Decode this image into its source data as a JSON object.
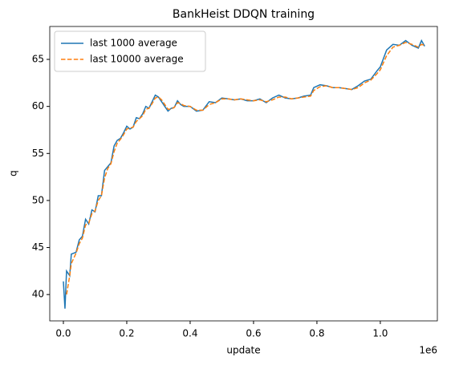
{
  "chart_data": {
    "type": "line",
    "title": "BankHeist DDQN training",
    "x_label": "update",
    "y_label": "q",
    "x_offset_label": "1e6",
    "x": [
      0,
      5000,
      10000,
      20000,
      25000,
      40000,
      50000,
      60000,
      70000,
      80000,
      90000,
      100000,
      110000,
      120000,
      130000,
      140000,
      150000,
      160000,
      170000,
      180000,
      190000,
      200000,
      210000,
      220000,
      230000,
      240000,
      250000,
      260000,
      270000,
      280000,
      290000,
      300000,
      310000,
      320000,
      330000,
      340000,
      350000,
      360000,
      370000,
      380000,
      400000,
      420000,
      440000,
      460000,
      480000,
      500000,
      520000,
      540000,
      560000,
      580000,
      600000,
      620000,
      640000,
      660000,
      680000,
      700000,
      720000,
      740000,
      760000,
      780000,
      790000,
      810000,
      830000,
      850000,
      870000,
      890000,
      910000,
      930000,
      950000,
      970000,
      990000,
      1000000,
      1020000,
      1040000,
      1060000,
      1080000,
      1100000,
      1120000,
      1130000,
      1140000
    ],
    "series": [
      {
        "name": "last 1000 average",
        "color": "#1f77b4",
        "linestyle": "solid",
        "values": [
          41.4,
          38.5,
          42.5,
          42.0,
          44.3,
          44.5,
          45.8,
          46.2,
          48.0,
          47.5,
          49.0,
          48.8,
          50.5,
          50.5,
          53.2,
          53.6,
          54.0,
          55.8,
          56.4,
          56.6,
          57.2,
          57.9,
          57.6,
          57.8,
          58.8,
          58.7,
          59.2,
          60.0,
          59.8,
          60.5,
          61.2,
          61.0,
          60.5,
          60.0,
          59.5,
          59.8,
          59.9,
          60.6,
          60.2,
          60.0,
          60.0,
          59.5,
          59.6,
          60.5,
          60.4,
          60.9,
          60.8,
          60.7,
          60.8,
          60.6,
          60.6,
          60.8,
          60.4,
          60.9,
          61.2,
          60.9,
          60.8,
          60.9,
          61.1,
          61.2,
          62.0,
          62.3,
          62.2,
          62.0,
          62.0,
          61.9,
          61.8,
          62.2,
          62.7,
          62.9,
          63.8,
          64.2,
          66.0,
          66.6,
          66.5,
          67.0,
          66.5,
          66.2,
          67.0,
          66.4
        ]
      },
      {
        "name": "last 10000 average",
        "color": "#ff7f0e",
        "linestyle": "dashed",
        "values": [
          null,
          null,
          40.0,
          42.0,
          43.3,
          44.4,
          45.4,
          46.0,
          47.4,
          47.6,
          48.6,
          48.9,
          50.0,
          50.5,
          52.4,
          53.4,
          53.9,
          55.2,
          56.1,
          56.5,
          57.0,
          57.6,
          57.7,
          57.8,
          58.4,
          58.7,
          59.0,
          59.7,
          59.8,
          60.3,
          60.9,
          61.0,
          60.7,
          60.2,
          59.7,
          59.7,
          59.9,
          60.4,
          60.3,
          60.1,
          60.0,
          59.6,
          59.6,
          60.2,
          60.4,
          60.8,
          60.8,
          60.7,
          60.8,
          60.7,
          60.6,
          60.7,
          60.5,
          60.7,
          61.0,
          61.0,
          60.8,
          60.9,
          61.0,
          61.1,
          61.7,
          62.1,
          62.2,
          62.0,
          62.0,
          61.9,
          61.8,
          62.0,
          62.5,
          62.8,
          63.5,
          63.9,
          65.4,
          66.3,
          66.5,
          66.8,
          66.6,
          66.3,
          66.6,
          66.5
        ]
      }
    ],
    "xlim": [
      -43000,
      1180000
    ],
    "ylim": [
      37.2,
      68.5
    ],
    "xticks": [
      {
        "value": 0,
        "label": "0.0"
      },
      {
        "value": 200000,
        "label": "0.2"
      },
      {
        "value": 400000,
        "label": "0.4"
      },
      {
        "value": 600000,
        "label": "0.6"
      },
      {
        "value": 800000,
        "label": "0.8"
      },
      {
        "value": 1000000,
        "label": "1.0"
      }
    ],
    "yticks": [
      40,
      45,
      50,
      55,
      60,
      65
    ],
    "legend": "upper left",
    "grid": false
  }
}
